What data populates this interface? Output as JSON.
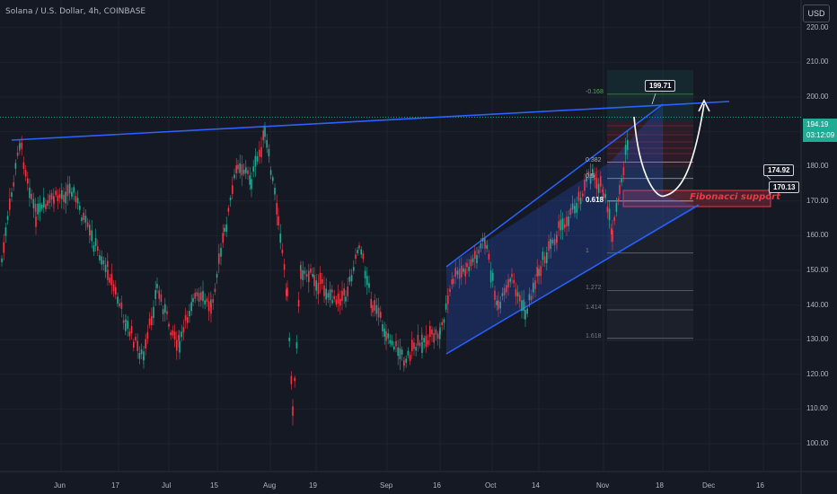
{
  "header": {
    "symbol_title": "Solana / U.S. Dollar, 4h, COINBASE",
    "currency_button": "USD"
  },
  "price_badge": {
    "price": "194.19",
    "countdown": "03:12:09"
  },
  "callouts": {
    "target_label": "199.71",
    "upper_label": "174.92",
    "lower_label": "170.13"
  },
  "annotation": {
    "fib_support": "Fibonacci support"
  },
  "colors": {
    "background": "#151924",
    "trendline": "#2962ff",
    "channel_fill": "#2962ff",
    "up_candle": "#22ab94",
    "down_candle": "#f23645",
    "support_zone": "#f23645"
  },
  "chart_data": {
    "type": "candlestick",
    "title": "Solana / U.S. Dollar, 4h, COINBASE",
    "y_axis": {
      "side": "right",
      "ticks": [
        "220.00",
        "210.00",
        "200.00",
        "190.00",
        "180.00",
        "170.00",
        "160.00",
        "150.00",
        "140.00",
        "130.00",
        "120.00",
        "110.00",
        "100.00"
      ],
      "ylim": [
        95,
        227
      ]
    },
    "x_axis": {
      "ticks": [
        "Jun",
        "17",
        "Jul",
        "15",
        "Aug",
        "19",
        "Sep",
        "16",
        "Oct",
        "14",
        "Nov",
        "18",
        "Dec",
        "16"
      ]
    },
    "last_price": 194.19,
    "price_path": [
      [
        "Jun",
        179
      ],
      [
        "Jun",
        188
      ],
      [
        "Jun",
        168
      ],
      [
        "17",
        155
      ],
      [
        "17",
        136
      ],
      [
        "17",
        127
      ],
      [
        "17",
        148
      ],
      [
        "Jul",
        138
      ],
      [
        "Jul",
        132
      ],
      [
        "Jul",
        148
      ],
      [
        "15",
        160
      ],
      [
        "15",
        183
      ],
      [
        "15",
        190
      ],
      [
        "Aug",
        148
      ],
      [
        "Aug",
        129
      ],
      [
        "Aug",
        112
      ],
      [
        "Aug",
        148
      ],
      [
        "19",
        143
      ],
      [
        "19",
        147
      ],
      [
        "19",
        160
      ],
      [
        "Sep",
        133
      ],
      [
        "Sep",
        128
      ],
      [
        "16",
        137
      ],
      [
        "16",
        148
      ],
      [
        "Oct",
        154
      ],
      [
        "Oct",
        140
      ],
      [
        "14",
        146
      ],
      [
        "14",
        160
      ],
      [
        "Nov",
        178
      ],
      [
        "Nov",
        169
      ],
      [
        "Nov",
        163
      ],
      [
        "Nov",
        176
      ],
      [
        "Nov",
        194
      ]
    ],
    "fib_levels": [
      {
        "label": "-0.168",
        "price": 200.8,
        "color": "#4caf50"
      },
      {
        "label": "0.382",
        "price": 181.2,
        "color": "#b2b5be"
      },
      {
        "label": "0.5",
        "price": 176.5,
        "color": "#b2b5be"
      },
      {
        "label": "0.618",
        "price": 170.0,
        "color": "#ffffff"
      },
      {
        "label": "1",
        "price": 155.0,
        "color": "#787b86"
      },
      {
        "label": "1.272",
        "price": 144.2,
        "color": "#787b86"
      },
      {
        "label": "1.414",
        "price": 138.6,
        "color": "#787b86"
      },
      {
        "label": "1.618",
        "price": 130.4,
        "color": "#787b86"
      }
    ],
    "annotations": [
      "199.71",
      "174.92",
      "170.13",
      "Fibonacci support"
    ]
  }
}
